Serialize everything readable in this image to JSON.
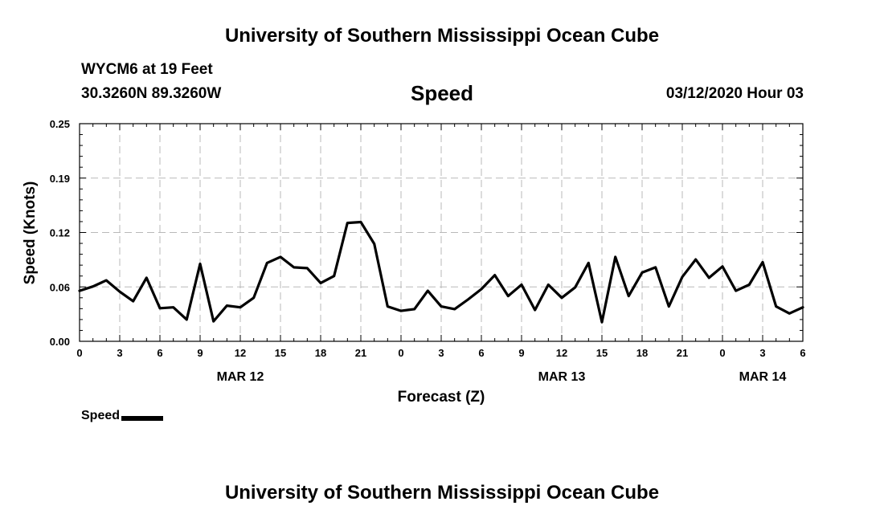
{
  "header": {
    "title": "University of Southern Mississippi Ocean Cube",
    "station": "WYCM6 at 19 Feet",
    "coords": "30.3260N 89.3260W",
    "variable": "Speed",
    "datestamp": "03/12/2020 Hour 03"
  },
  "footer": {
    "title": "University of Southern Mississippi Ocean Cube"
  },
  "legend": {
    "label": "Speed"
  },
  "colors": {
    "series": "#000000",
    "grid": "#b8b8b8",
    "background": "#ffffff"
  },
  "chart_data": {
    "type": "line",
    "title": "Speed",
    "xlabel": "Forecast (Z)",
    "ylabel": "Speed (Knots)",
    "ylim": [
      0,
      0.25
    ],
    "yticks": [
      "0.00",
      "0.06",
      "0.12",
      "0.19",
      "0.25"
    ],
    "ytick_values": [
      0,
      0.0625,
      0.125,
      0.1875,
      0.25
    ],
    "xlim": [
      0,
      54
    ],
    "x_units": "hours from 00Z Mar 12",
    "xticks": [
      "0",
      "3",
      "6",
      "9",
      "12",
      "15",
      "18",
      "21",
      "0",
      "3",
      "6",
      "9",
      "12",
      "15",
      "18",
      "21",
      "0",
      "3",
      "6"
    ],
    "date_labels": [
      {
        "label": "MAR 12",
        "at_hour": 12
      },
      {
        "label": "MAR 13",
        "at_hour": 36
      },
      {
        "label": "MAR 14",
        "at_hour": 51
      }
    ],
    "grid": true,
    "legend_position": "bottom-left",
    "series": [
      {
        "name": "Speed",
        "x": [
          0,
          1,
          2,
          3,
          4,
          5,
          6,
          7,
          8,
          9,
          10,
          11,
          12,
          13,
          14,
          15,
          16,
          17,
          18,
          19,
          20,
          21,
          22,
          23,
          24,
          25,
          26,
          27,
          28,
          29,
          30,
          31,
          32,
          33,
          34,
          35,
          36,
          37,
          38,
          39,
          40,
          41,
          42,
          43,
          44,
          45,
          46,
          47,
          48,
          49,
          50,
          51,
          52,
          53,
          54
        ],
        "values": [
          0.058,
          0.063,
          0.07,
          0.057,
          0.046,
          0.073,
          0.038,
          0.039,
          0.025,
          0.089,
          0.023,
          0.041,
          0.039,
          0.05,
          0.09,
          0.097,
          0.085,
          0.084,
          0.067,
          0.075,
          0.136,
          0.137,
          0.112,
          0.04,
          0.035,
          0.037,
          0.058,
          0.04,
          0.037,
          0.048,
          0.06,
          0.076,
          0.052,
          0.065,
          0.036,
          0.065,
          0.05,
          0.062,
          0.09,
          0.022,
          0.097,
          0.052,
          0.079,
          0.085,
          0.04,
          0.074,
          0.094,
          0.073,
          0.086,
          0.058,
          0.065,
          0.091,
          0.04,
          0.032,
          0.039
        ]
      }
    ]
  }
}
